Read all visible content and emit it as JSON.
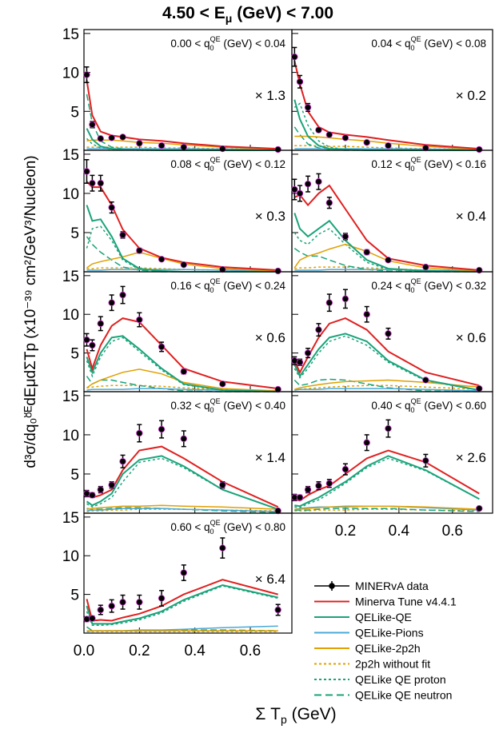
{
  "title_main": "4.50 < E",
  "title_sub": "μ",
  "title_rest": " (GeV) < 7.00",
  "xlabel_main": "Σ T",
  "xlabel_sub": "p",
  "xlabel_rest": " (GeV)",
  "ylabel": "d³σ/dq₀ᴽᴱdEμdΣTp (x10⁻³⁹ cm²/GeV³/Nucleon)",
  "ytick_labels": [
    "15",
    "10",
    "5"
  ],
  "xtick_labels": [
    "0.0",
    "0.2",
    "0.4",
    "0.6"
  ],
  "colors": {
    "data": "#000000",
    "marker_edge": "#cc33cc",
    "tune": "#e02020",
    "qe": "#1aa37a",
    "pions": "#4aaad6",
    "twop2h": "#e0a000"
  },
  "legend": [
    {
      "label": "MINERvA data",
      "key": "data",
      "style": "data"
    },
    {
      "label": "Minerva Tune v4.4.1",
      "key": "tune",
      "style": "solid"
    },
    {
      "label": "QELike-QE",
      "key": "qe",
      "style": "solid"
    },
    {
      "label": "QELike-Pions",
      "key": "pions",
      "style": "solid"
    },
    {
      "label": "QELike-2p2h",
      "key": "twop2h",
      "style": "solid"
    },
    {
      "label": "2p2h without fit",
      "key": "twop2h",
      "style": "dotted"
    },
    {
      "label": "QELike QE proton",
      "key": "qe",
      "style": "dotted"
    },
    {
      "label": "QELike QE neutron",
      "key": "qe",
      "style": "dashed"
    }
  ],
  "chart_data": {
    "type": "line",
    "xlabel": "Σ T_p (GeV)",
    "ylabel": "d³σ/dq0^QE dEμ dΣTp (x10⁻³⁹ cm²/GeV³/Nucleon)",
    "xlim": [
      0.0,
      0.75
    ],
    "ylim": [
      0,
      15
    ],
    "x": [
      0.01,
      0.03,
      0.06,
      0.1,
      0.14,
      0.2,
      0.28,
      0.36,
      0.5,
      0.7
    ],
    "panels": [
      {
        "range": "0.00 < q",
        "range_rest": " (GeV) < 0.04",
        "scale": "× 1.3",
        "data": [
          9.7,
          3.3,
          1.5,
          1.6,
          1.7,
          0.9,
          0.6,
          0.4,
          0.2,
          0.1
        ],
        "err": [
          1.0,
          0.4,
          0.2,
          0.2,
          0.2,
          0.15,
          0.1,
          0.1,
          0.05,
          0.05
        ],
        "tune": [
          9.0,
          4.5,
          2.4,
          1.9,
          1.7,
          1.4,
          1.2,
          0.9,
          0.5,
          0.2
        ],
        "qe": [
          2.8,
          1.4,
          0.5,
          0.2,
          0.1,
          0.05,
          0.0,
          0.0,
          0.0,
          0.0
        ],
        "qe_proton": [
          1.5,
          0.8,
          0.3,
          0.1,
          0.05,
          0.0,
          0.0,
          0.0,
          0.0,
          0.0
        ],
        "qe_neutron": [
          7.2,
          3.5,
          1.2,
          0.4,
          0.2,
          0.1,
          0.0,
          0.0,
          0.0,
          0.0
        ],
        "pions": [
          0.2,
          0.2,
          0.2,
          0.2,
          0.2,
          0.2,
          0.2,
          0.2,
          0.15,
          0.1
        ],
        "twop2h": [
          1.2,
          1.3,
          1.3,
          1.3,
          1.2,
          1.0,
          0.9,
          0.7,
          0.4,
          0.1
        ],
        "twop2h_nofit": [
          0.4,
          0.4,
          0.4,
          0.4,
          0.4,
          0.4,
          0.3,
          0.3,
          0.2,
          0.1
        ]
      },
      {
        "range": "0.04 < q",
        "range_rest": " (GeV) < 0.08",
        "scale": "× 0.2",
        "data": [
          12.0,
          8.8,
          5.5,
          2.6,
          2.0,
          1.6,
          1.0,
          0.6,
          0.3,
          0.1
        ],
        "err": [
          1.2,
          0.8,
          0.5,
          0.25,
          0.2,
          0.2,
          0.15,
          0.1,
          0.05,
          0.05
        ],
        "tune": [
          11.5,
          8.5,
          5.0,
          3.0,
          2.3,
          2.0,
          1.7,
          1.3,
          0.7,
          0.2
        ],
        "qe": [
          6.5,
          4.0,
          1.8,
          0.6,
          0.2,
          0.1,
          0.0,
          0.0,
          0.0,
          0.0
        ],
        "qe_proton": [
          5.5,
          6.0,
          3.2,
          1.2,
          0.4,
          0.1,
          0.0,
          0.0,
          0.0,
          0.0
        ],
        "qe_neutron": [
          3.0,
          2.0,
          0.8,
          0.3,
          0.1,
          0.0,
          0.0,
          0.0,
          0.0,
          0.0
        ],
        "pions": [
          0.2,
          0.2,
          0.2,
          0.2,
          0.2,
          0.2,
          0.2,
          0.2,
          0.15,
          0.1
        ],
        "twop2h": [
          1.8,
          1.8,
          1.8,
          1.7,
          1.6,
          1.4,
          1.2,
          0.9,
          0.5,
          0.1
        ],
        "twop2h_nofit": [
          0.6,
          0.6,
          0.6,
          0.6,
          0.5,
          0.5,
          0.4,
          0.3,
          0.2,
          0.1
        ]
      },
      {
        "range": "0.08 < q",
        "range_rest": " (GeV) < 0.12",
        "scale": "× 0.3",
        "data": [
          12.8,
          11.3,
          11.3,
          8.2,
          4.7,
          2.7,
          1.6,
          0.9,
          0.3,
          0.1
        ],
        "err": [
          1.5,
          1.0,
          1.0,
          0.7,
          0.4,
          0.3,
          0.2,
          0.1,
          0.05,
          0.05
        ],
        "tune": [
          11.5,
          10.8,
          10.8,
          8.5,
          5.4,
          3.0,
          1.8,
          1.2,
          0.6,
          0.2
        ],
        "qe": [
          8.5,
          6.5,
          6.7,
          4.5,
          1.7,
          0.4,
          0.1,
          0.0,
          0.0,
          0.0
        ],
        "qe_proton": [
          3.0,
          5.5,
          5.8,
          4.0,
          1.5,
          0.3,
          0.1,
          0.0,
          0.0,
          0.0
        ],
        "qe_neutron": [
          4.5,
          3.5,
          2.5,
          1.5,
          0.6,
          0.2,
          0.0,
          0.0,
          0.0,
          0.0
        ],
        "pions": [
          0.2,
          0.2,
          0.2,
          0.3,
          0.3,
          0.3,
          0.3,
          0.3,
          0.2,
          0.1
        ],
        "twop2h": [
          0.5,
          1.0,
          1.3,
          1.6,
          1.9,
          2.5,
          1.7,
          1.0,
          0.4,
          0.1
        ],
        "twop2h_nofit": [
          0.4,
          0.4,
          0.5,
          0.5,
          0.5,
          0.5,
          0.4,
          0.3,
          0.2,
          0.1
        ]
      },
      {
        "range": "0.12 < q",
        "range_rest": " (GeV) < 0.16",
        "scale": "× 0.4",
        "data": [
          10.5,
          10.0,
          11.2,
          11.5,
          8.8,
          4.5,
          2.5,
          1.5,
          0.6,
          0.2
        ],
        "err": [
          1.3,
          1.0,
          1.0,
          1.0,
          0.7,
          0.4,
          0.3,
          0.15,
          0.1,
          0.05
        ],
        "tune": [
          9.5,
          9.8,
          8.5,
          10.0,
          11.0,
          8.0,
          4.0,
          1.7,
          0.8,
          0.2
        ],
        "qe": [
          7.5,
          5.5,
          4.5,
          5.5,
          6.5,
          4.0,
          1.5,
          0.4,
          0.1,
          0.0
        ],
        "qe_proton": [
          5.0,
          4.0,
          3.5,
          4.8,
          5.5,
          3.5,
          1.2,
          0.3,
          0.1,
          0.0
        ],
        "qe_neutron": [
          3.0,
          2.5,
          2.0,
          2.0,
          1.5,
          0.8,
          0.3,
          0.1,
          0.0,
          0.0
        ],
        "pions": [
          0.2,
          0.2,
          0.2,
          0.2,
          0.3,
          0.3,
          0.3,
          0.3,
          0.2,
          0.1
        ],
        "twop2h": [
          0.5,
          1.5,
          2.0,
          2.4,
          2.9,
          3.5,
          2.6,
          1.4,
          0.5,
          0.1
        ],
        "twop2h_nofit": [
          0.4,
          0.5,
          0.5,
          0.6,
          0.6,
          0.6,
          0.5,
          0.4,
          0.2,
          0.1
        ]
      },
      {
        "range": "0.16 < q",
        "range_rest": " (GeV) < 0.24",
        "scale": "× 0.6",
        "data": [
          6.7,
          6.0,
          8.8,
          11.5,
          12.5,
          9.3,
          5.8,
          2.6,
          1.0,
          0.3
        ],
        "err": [
          0.8,
          0.7,
          0.9,
          1.0,
          1.1,
          0.9,
          0.6,
          0.3,
          0.1,
          0.05
        ],
        "tune": [
          5.5,
          3.0,
          6.0,
          8.5,
          9.5,
          9.0,
          6.0,
          3.0,
          1.3,
          0.4
        ],
        "qe": [
          4.5,
          2.5,
          5.0,
          7.0,
          7.2,
          5.5,
          3.0,
          1.0,
          0.2,
          0.0
        ],
        "qe_proton": [
          4.0,
          2.0,
          4.5,
          6.5,
          7.0,
          5.2,
          2.8,
          0.9,
          0.2,
          0.0
        ],
        "qe_neutron": [
          2.0,
          1.0,
          1.5,
          1.5,
          1.2,
          0.8,
          0.4,
          0.1,
          0.0,
          0.0
        ],
        "pions": [
          0.2,
          0.3,
          0.3,
          0.3,
          0.3,
          0.4,
          0.4,
          0.3,
          0.2,
          0.1
        ],
        "twop2h": [
          0.5,
          1.0,
          1.5,
          2.0,
          2.5,
          2.9,
          2.3,
          1.2,
          0.4,
          0.1
        ],
        "twop2h_nofit": [
          0.5,
          0.6,
          0.7,
          0.8,
          0.8,
          0.8,
          0.7,
          0.5,
          0.3,
          0.1
        ]
      },
      {
        "range": "0.24 < q",
        "range_rest": " (GeV) < 0.32",
        "scale": "× 0.6",
        "data": [
          4.0,
          3.8,
          5.0,
          8.0,
          11.5,
          12.0,
          10.0,
          7.5,
          1.5,
          0.4
        ],
        "err": [
          0.5,
          0.4,
          0.6,
          0.8,
          1.1,
          1.2,
          1.0,
          0.7,
          0.2,
          0.05
        ],
        "tune": [
          4.0,
          2.5,
          4.5,
          7.0,
          8.8,
          9.5,
          8.0,
          5.2,
          2.5,
          0.8
        ],
        "qe": [
          3.5,
          2.0,
          3.5,
          5.5,
          7.0,
          7.5,
          6.5,
          4.0,
          1.5,
          0.2
        ],
        "qe_proton": [
          3.0,
          1.8,
          3.0,
          5.0,
          6.5,
          7.2,
          6.0,
          3.8,
          1.4,
          0.2
        ],
        "qe_neutron": [
          1.5,
          0.8,
          1.0,
          1.5,
          1.6,
          1.5,
          1.0,
          0.5,
          0.1,
          0.0
        ],
        "pions": [
          0.2,
          0.3,
          0.3,
          0.3,
          0.4,
          0.4,
          0.4,
          0.4,
          0.3,
          0.1
        ],
        "twop2h": [
          0.3,
          0.5,
          0.7,
          0.9,
          1.1,
          1.3,
          1.4,
          1.5,
          1.2,
          0.6
        ],
        "twop2h_nofit": [
          0.2,
          0.3,
          0.4,
          0.5,
          0.6,
          0.7,
          0.8,
          0.8,
          0.6,
          0.3
        ]
      },
      {
        "range": "0.32 < q",
        "range_rest": " (GeV) < 0.40",
        "scale": "× 1.4",
        "data": [
          2.5,
          2.3,
          3.0,
          3.6,
          6.6,
          10.2,
          10.7,
          9.5,
          3.6,
          0.3
        ],
        "err": [
          0.4,
          0.3,
          0.4,
          0.4,
          0.8,
          1.1,
          1.1,
          1.0,
          0.4,
          0.05
        ],
        "tune": [
          2.3,
          2.0,
          2.3,
          3.0,
          5.5,
          8.0,
          8.5,
          7.0,
          4.0,
          0.8
        ],
        "qe": [
          1.5,
          1.0,
          1.5,
          2.5,
          5.0,
          6.8,
          7.3,
          6.0,
          3.0,
          0.5
        ],
        "qe_proton": [
          1.2,
          0.8,
          1.2,
          2.0,
          4.0,
          6.5,
          7.0,
          5.8,
          3.0,
          0.5
        ],
        "qe_neutron": [
          0.6,
          0.5,
          0.5,
          0.6,
          0.7,
          0.7,
          0.6,
          0.5,
          0.3,
          0.1
        ],
        "pions": [
          0.3,
          0.4,
          0.4,
          0.5,
          0.6,
          0.6,
          0.6,
          0.5,
          0.4,
          0.2
        ],
        "twop2h": [
          0.5,
          0.6,
          0.7,
          0.8,
          0.9,
          0.9,
          1.0,
          0.9,
          0.8,
          0.5
        ],
        "twop2h_nofit": [
          0.2,
          0.3,
          0.3,
          0.4,
          0.4,
          0.5,
          0.5,
          0.5,
          0.4,
          0.3
        ]
      },
      {
        "range": "0.40 < q",
        "range_rest": " (GeV) < 0.60",
        "scale": "× 2.6",
        "data": [
          2.0,
          2.0,
          3.0,
          3.5,
          3.8,
          5.6,
          9.0,
          10.8,
          6.7,
          0.6
        ],
        "err": [
          0.4,
          0.3,
          0.4,
          0.5,
          0.5,
          0.7,
          1.0,
          1.1,
          0.8,
          0.1
        ],
        "tune": [
          1.8,
          1.6,
          2.3,
          3.0,
          3.5,
          5.0,
          7.0,
          8.0,
          6.5,
          2.5
        ],
        "qe": [
          1.0,
          0.9,
          1.4,
          2.0,
          2.8,
          4.0,
          6.0,
          7.3,
          5.5,
          1.8
        ],
        "qe_proton": [
          0.8,
          0.7,
          1.2,
          1.7,
          2.5,
          3.8,
          5.8,
          7.0,
          5.4,
          1.8
        ],
        "qe_neutron": [
          0.4,
          0.4,
          0.4,
          0.5,
          0.6,
          0.6,
          0.6,
          0.6,
          0.4,
          0.2
        ],
        "pions": [
          0.5,
          0.6,
          0.7,
          0.8,
          0.8,
          0.9,
          0.9,
          0.9,
          0.7,
          0.4
        ],
        "twop2h": [
          0.5,
          0.5,
          0.6,
          0.7,
          0.8,
          0.8,
          0.9,
          0.9,
          0.8,
          0.5
        ],
        "twop2h_nofit": [
          0.3,
          0.3,
          0.3,
          0.4,
          0.4,
          0.4,
          0.5,
          0.5,
          0.4,
          0.3
        ]
      },
      {
        "range": "0.60 < q",
        "range_rest": " (GeV) < 0.80",
        "scale": "× 6.4",
        "data": [
          1.8,
          1.9,
          3.0,
          3.5,
          4.0,
          4.0,
          4.5,
          7.8,
          11.0,
          3.0
        ],
        "err": [
          0.3,
          0.3,
          0.6,
          0.8,
          0.9,
          0.9,
          1.0,
          1.0,
          1.3,
          0.7
        ],
        "tune": [
          4.4,
          1.6,
          1.7,
          1.6,
          2.0,
          2.5,
          3.5,
          5.0,
          6.9,
          5.0
        ],
        "qe": [
          3.5,
          1.2,
          1.2,
          1.2,
          1.5,
          1.9,
          2.8,
          4.3,
          6.2,
          4.6
        ],
        "qe_proton": [
          2.8,
          1.0,
          1.0,
          1.1,
          1.3,
          1.7,
          2.6,
          4.1,
          6.1,
          4.5
        ],
        "qe_neutron": [
          0.8,
          0.3,
          0.3,
          0.3,
          0.3,
          0.3,
          0.3,
          0.4,
          0.4,
          0.3
        ],
        "pions": [
          0.2,
          0.3,
          0.3,
          0.3,
          0.3,
          0.4,
          0.4,
          0.5,
          0.7,
          0.9
        ],
        "twop2h": [
          0.3,
          0.3,
          0.3,
          0.3,
          0.3,
          0.3,
          0.3,
          0.3,
          0.3,
          0.3
        ],
        "twop2h_nofit": [
          0.2,
          0.2,
          0.2,
          0.2,
          0.2,
          0.2,
          0.2,
          0.2,
          0.2,
          0.2
        ]
      }
    ]
  }
}
